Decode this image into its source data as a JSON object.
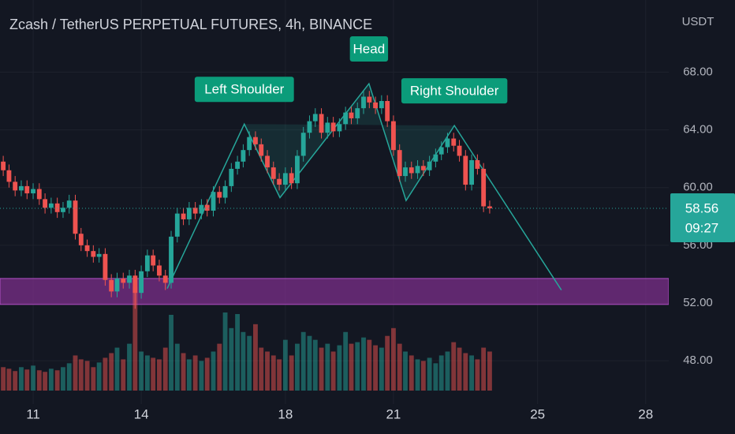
{
  "chart_data": {
    "type": "candlestick",
    "title": "Zcash / TetherUS PERPETUAL FUTURES, 4h, BINANCE",
    "currency": "USDT",
    "up_color": "#26a69a",
    "down_color": "#ef5350",
    "x": [
      10.17,
      10.33,
      10.5,
      10.67,
      10.83,
      11,
      11.17,
      11.33,
      11.5,
      11.67,
      11.83,
      12,
      12.17,
      12.33,
      12.5,
      12.67,
      12.83,
      13,
      13.17,
      13.33,
      13.5,
      13.67,
      13.83,
      14,
      14.17,
      14.33,
      14.5,
      14.67,
      14.83,
      15,
      15.17,
      15.33,
      15.5,
      15.67,
      15.83,
      16,
      16.17,
      16.33,
      16.5,
      16.67,
      16.83,
      17,
      17.17,
      17.33,
      17.5,
      17.67,
      17.83,
      18,
      18.17,
      18.33,
      18.5,
      18.67,
      18.83,
      19,
      19.17,
      19.33,
      19.5,
      19.67,
      19.83,
      20,
      20.17,
      20.33,
      20.5,
      20.67,
      20.83,
      21,
      21.17,
      21.33,
      21.5,
      21.67,
      21.83,
      22,
      22.17,
      22.33,
      22.5,
      22.67,
      22.83,
      23,
      23.17,
      23.33,
      23.5,
      23.67
    ],
    "open": [
      61.8,
      61.2,
      60.4,
      59.8,
      60.1,
      59.6,
      59.9,
      59.2,
      58.6,
      58.9,
      58.3,
      58.6,
      59.1,
      56.8,
      56.0,
      55.6,
      55.2,
      55.4,
      53.6,
      52.8,
      53.7,
      53.4,
      53.9,
      52.7,
      54.2,
      55.3,
      54.6,
      53.9,
      53.4,
      56.6,
      58.2,
      57.8,
      58.6,
      58.2,
      58.8,
      58.4,
      59.7,
      59.3,
      60.1,
      61.3,
      61.8,
      62.6,
      63.5,
      63.0,
      62.2,
      61.4,
      60.6,
      60.2,
      61.0,
      60.3,
      62.2,
      63.8,
      64.6,
      65.1,
      63.8,
      64.5,
      63.9,
      64.4,
      65.2,
      64.8,
      65.5,
      66.3,
      65.9,
      65.5,
      66.0,
      64.6,
      62.6,
      60.8,
      61.4,
      61.0,
      61.5,
      61.2,
      61.8,
      62.3,
      62.8,
      63.4,
      62.9,
      62.2,
      60.2,
      61.9,
      61.3,
      58.7
    ],
    "high": [
      62.2,
      61.6,
      60.8,
      60.5,
      60.5,
      60.3,
      60.3,
      59.6,
      59.3,
      59.3,
      59.0,
      59.5,
      59.5,
      57.2,
      56.4,
      56.0,
      55.8,
      55.8,
      54.0,
      54.1,
      54.1,
      54.3,
      54.3,
      54.6,
      55.7,
      55.7,
      55.0,
      54.3,
      57.0,
      58.6,
      58.6,
      59.0,
      59.0,
      59.2,
      59.2,
      60.1,
      60.1,
      60.5,
      61.7,
      62.2,
      63.0,
      63.9,
      63.9,
      63.4,
      62.6,
      61.8,
      61.0,
      61.4,
      61.4,
      62.6,
      64.2,
      65.0,
      65.5,
      65.5,
      64.9,
      64.9,
      64.8,
      65.6,
      65.6,
      65.9,
      66.7,
      66.7,
      66.3,
      66.4,
      66.4,
      65.0,
      63.0,
      61.8,
      61.8,
      61.9,
      61.9,
      62.2,
      62.7,
      63.2,
      63.8,
      63.8,
      63.3,
      62.6,
      62.3,
      62.3,
      61.7,
      59.1
    ],
    "low": [
      60.8,
      60.0,
      59.4,
      59.4,
      59.2,
      59.2,
      58.8,
      58.2,
      58.2,
      57.9,
      57.9,
      58.2,
      56.4,
      55.6,
      55.2,
      54.8,
      54.8,
      53.2,
      52.4,
      52.4,
      53.0,
      53.0,
      51.6,
      52.3,
      53.8,
      54.2,
      53.5,
      52.9,
      53.0,
      56.2,
      57.4,
      57.4,
      57.8,
      57.8,
      58.0,
      58.0,
      58.9,
      58.9,
      59.7,
      60.9,
      61.4,
      62.2,
      62.6,
      61.8,
      61.0,
      60.2,
      59.8,
      59.8,
      59.9,
      59.9,
      61.8,
      63.4,
      64.2,
      63.4,
      63.4,
      63.5,
      63.5,
      64.0,
      64.4,
      64.4,
      65.1,
      65.5,
      65.1,
      65.1,
      64.2,
      62.2,
      60.4,
      60.4,
      60.6,
      60.6,
      60.8,
      60.8,
      61.4,
      61.9,
      62.4,
      62.5,
      61.8,
      59.8,
      59.8,
      60.9,
      58.3,
      58.2
    ],
    "close": [
      61.2,
      60.4,
      59.8,
      60.1,
      59.6,
      59.9,
      59.2,
      58.6,
      58.9,
      58.3,
      58.6,
      59.1,
      56.8,
      56.0,
      55.6,
      55.2,
      55.4,
      53.6,
      52.8,
      53.7,
      53.4,
      53.9,
      52.7,
      54.2,
      55.3,
      54.6,
      53.9,
      53.4,
      56.6,
      58.2,
      57.8,
      58.6,
      58.2,
      58.8,
      58.4,
      59.7,
      59.3,
      60.1,
      61.3,
      61.8,
      62.6,
      63.5,
      63.0,
      62.2,
      61.4,
      60.6,
      60.2,
      61.0,
      60.3,
      62.2,
      63.8,
      64.6,
      65.1,
      63.8,
      64.5,
      63.9,
      64.4,
      65.2,
      64.8,
      65.5,
      66.3,
      65.9,
      65.5,
      66.0,
      64.6,
      62.6,
      60.8,
      61.4,
      61.0,
      61.5,
      61.2,
      61.8,
      62.3,
      62.8,
      63.4,
      62.9,
      62.2,
      60.2,
      61.9,
      61.3,
      58.7,
      58.56
    ],
    "volume": [
      30,
      28,
      25,
      30,
      27,
      32,
      26,
      24,
      28,
      26,
      30,
      35,
      45,
      40,
      38,
      30,
      36,
      42,
      48,
      55,
      40,
      60,
      133,
      50,
      45,
      42,
      40,
      55,
      97,
      60,
      48,
      40,
      45,
      38,
      42,
      50,
      60,
      100,
      80,
      98,
      75,
      70,
      85,
      55,
      50,
      45,
      40,
      65,
      45,
      60,
      75,
      70,
      65,
      55,
      60,
      50,
      58,
      75,
      60,
      62,
      68,
      65,
      58,
      55,
      70,
      80,
      60,
      50,
      45,
      40,
      38,
      42,
      35,
      45,
      50,
      62,
      55,
      48,
      45,
      40,
      55,
      50
    ],
    "volume_lim": [
      0,
      500
    ],
    "xlim": [
      10.08,
      28.64
    ],
    "xticks": [
      11,
      14,
      18,
      21,
      25,
      28
    ],
    "ylim": [
      45,
      73
    ],
    "yticks": [
      {
        "value": 48,
        "label": "48.00"
      },
      {
        "value": 52,
        "label": "52.00"
      },
      {
        "value": 56,
        "label": "56.00"
      },
      {
        "value": 60,
        "label": "60.00"
      },
      {
        "value": 64,
        "label": "64.00"
      },
      {
        "value": 68,
        "label": "68.00"
      }
    ],
    "last_price": 58.56,
    "countdown": "09:27",
    "zone": [
      51.9,
      53.7
    ],
    "zone_color": "#7b2f8a",
    "pattern": {
      "color": "#26a69a",
      "x": [
        14.72,
        16.86,
        17.85,
        20.32,
        21.35,
        22.69,
        25.66
      ],
      "y": [
        53.0,
        64.4,
        59.3,
        67.2,
        59.1,
        64.3,
        52.9
      ],
      "labels": [
        {
          "text": "Left Shoulder",
          "point": 1
        },
        {
          "text": "Head",
          "point": 3
        },
        {
          "text": "Right Shoulder",
          "point": 5
        }
      ]
    }
  }
}
